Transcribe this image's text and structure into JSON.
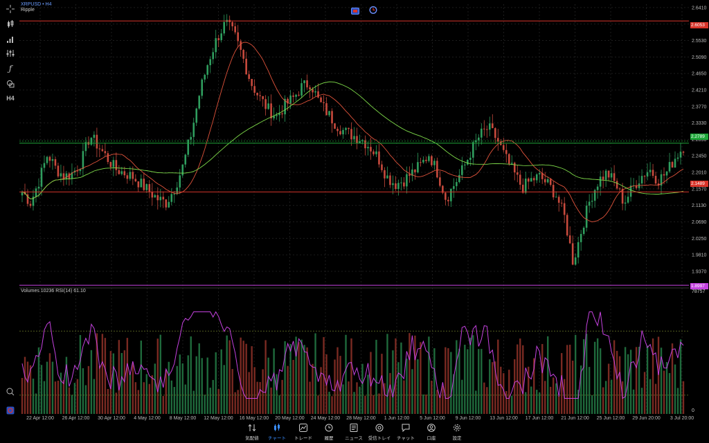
{
  "header": {
    "symbol": "XRPUSD",
    "timeframe": "H4",
    "description": "Ripple"
  },
  "left_toolbar": [
    {
      "icon": "crosshair-icon"
    },
    {
      "icon": "chart-type-icon"
    },
    {
      "icon": "indicators-icon"
    },
    {
      "icon": "settings-sliders-icon"
    },
    {
      "icon": "function-icon"
    },
    {
      "icon": "objects-icon"
    },
    {
      "icon": "timeframe-icon",
      "label": "H4"
    }
  ],
  "price_axis": [
    "2.6410",
    "2.5970",
    "2.5530",
    "2.5090",
    "2.4650",
    "2.4210",
    "2.3770",
    "2.3330",
    "2.2890",
    "2.2450",
    "2.2010",
    "2.1570",
    "2.1130",
    "2.0690",
    "2.0250",
    "1.9810",
    "1.9370"
  ],
  "price_labels": [
    {
      "text": "2.6053",
      "color": "#d8342a"
    },
    {
      "text": "2.2789",
      "color": "#1fa83a"
    },
    {
      "text": "2.1489",
      "color": "#d8342a"
    },
    {
      "text": "1.8997",
      "color": "#c542e0"
    }
  ],
  "indicator": {
    "title": "Volumes 10236 RSI(14) 61.10",
    "top_value": "78757",
    "bottom_value": "0"
  },
  "time_axis": [
    "22 Apr 12:00",
    "26 Apr 12:00",
    "30 Apr 12:00",
    "4 May 12:00",
    "8 May 12:00",
    "12 May 12:00",
    "16 May 12:00",
    "20 May 12:00",
    "24 May 12:00",
    "28 May 12:00",
    "1 Jun 12:00",
    "5 Jun 12:00",
    "9 Jun 12:00",
    "13 Jun 12:00",
    "17 Jun 12:00",
    "21 Jun 12:00",
    "25 Jun 12:00",
    "29 Jun 20:00",
    "3 Jul 20:00"
  ],
  "bottom_nav": [
    {
      "label": "気配値",
      "icon": "quotes-icon",
      "active": false
    },
    {
      "label": "チャート",
      "icon": "chart-icon",
      "active": true
    },
    {
      "label": "トレード",
      "icon": "trade-icon",
      "active": false
    },
    {
      "label": "履歴",
      "icon": "history-icon",
      "active": false
    },
    {
      "label": "ニュース",
      "icon": "news-icon",
      "active": false
    },
    {
      "label": "受信トレイ",
      "icon": "inbox-icon",
      "active": false
    },
    {
      "label": "チャット",
      "icon": "chat-icon",
      "active": false
    },
    {
      "label": "口座",
      "icon": "account-icon",
      "active": false
    },
    {
      "label": "設定",
      "icon": "settings-icon",
      "active": false
    }
  ],
  "chart_data": {
    "type": "candlestick",
    "symbol": "XRPUSD",
    "timeframe": "H4",
    "ylim": [
      1.9,
      2.65
    ],
    "close_series": [
      2.15,
      2.12,
      2.18,
      2.25,
      2.21,
      2.19,
      2.2,
      2.23,
      2.3,
      2.27,
      2.24,
      2.21,
      2.2,
      2.19,
      2.17,
      2.15,
      2.13,
      2.12,
      2.16,
      2.22,
      2.31,
      2.42,
      2.5,
      2.56,
      2.6,
      2.57,
      2.51,
      2.44,
      2.4,
      2.37,
      2.35,
      2.38,
      2.4,
      2.43,
      2.44,
      2.39,
      2.36,
      2.33,
      2.31,
      2.3,
      2.29,
      2.27,
      2.24,
      2.19,
      2.17,
      2.18,
      2.2,
      2.22,
      2.25,
      2.2,
      2.13,
      2.17,
      2.21,
      2.26,
      2.3,
      2.32,
      2.29,
      2.24,
      2.2,
      2.16,
      2.18,
      2.19,
      2.17,
      2.14,
      2.08,
      1.96,
      2.05,
      2.13,
      2.18,
      2.2,
      2.17,
      2.12,
      2.16,
      2.19,
      2.21,
      2.18,
      2.2,
      2.24,
      2.27
    ],
    "horizontal_lines": [
      {
        "value": 2.6053,
        "color": "#d8342a"
      },
      {
        "value": 2.2789,
        "color": "#1fa83a"
      },
      {
        "value": 2.1489,
        "color": "#d8342a"
      },
      {
        "value": 1.8997,
        "color": "#c542e0"
      }
    ],
    "moving_averages": [
      {
        "color": "#e0533b"
      },
      {
        "color": "#7fdc4a"
      }
    ],
    "rsi": {
      "value": 61.1,
      "period": 14,
      "levels": [
        70,
        30
      ]
    },
    "volume": {
      "last": 10236,
      "max": 78757
    }
  },
  "colors": {
    "bull": "#2f9e5e",
    "bear": "#c84a3d",
    "rsi": "#c542e0",
    "grid": "#1d1d1d",
    "accent": "#3a8dff"
  }
}
